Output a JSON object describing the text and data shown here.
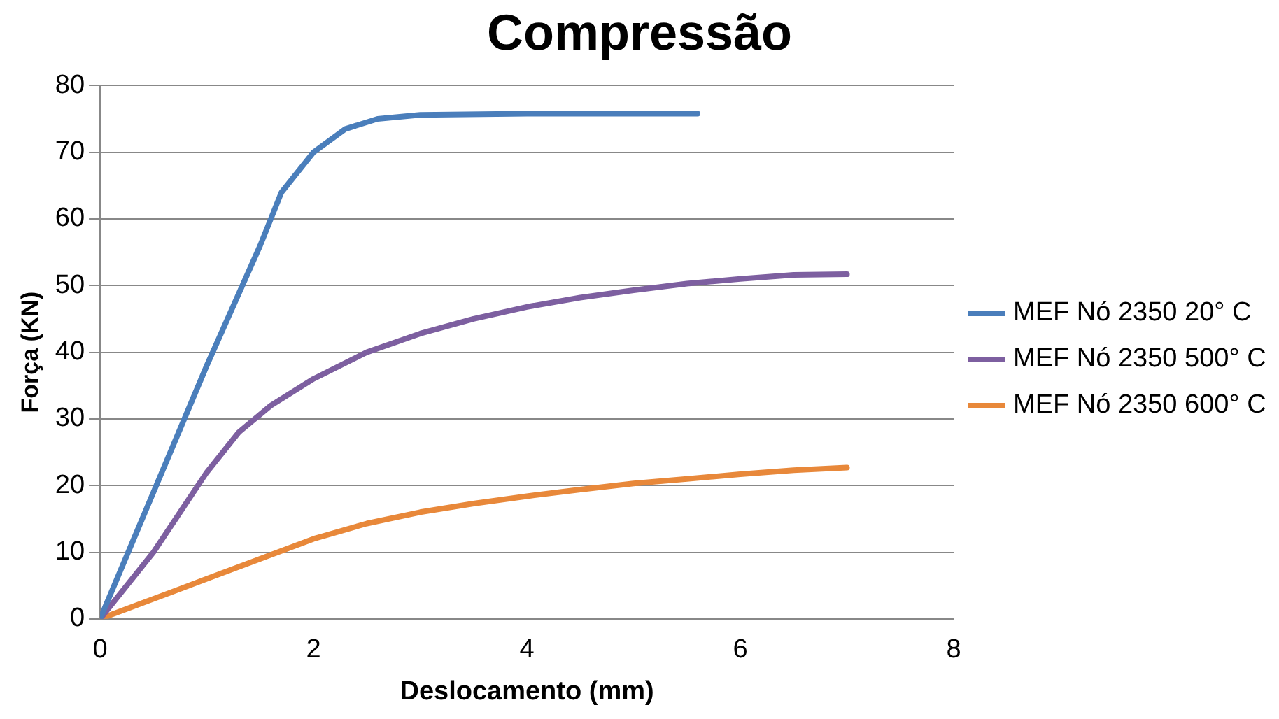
{
  "chart_data": {
    "type": "line",
    "title": "Compressão",
    "xlabel": "Deslocamento (mm)",
    "ylabel": "Força (KN)",
    "xlim": [
      0,
      8
    ],
    "xticks": [
      0,
      2,
      4,
      6,
      8
    ],
    "ylim": [
      0,
      80
    ],
    "yticks": [
      0,
      10,
      20,
      30,
      40,
      50,
      60,
      70,
      80
    ],
    "grid": "y",
    "legend": "right",
    "marker": "none",
    "series": [
      {
        "name": "MEF Nó 2350 20° C",
        "color": "#4a7ebb",
        "x": [
          0,
          0.5,
          1.0,
          1.5,
          1.7,
          2.0,
          2.3,
          2.6,
          3.0,
          4.0,
          5.6
        ],
        "values": [
          0,
          19,
          38,
          56,
          64,
          70,
          73.5,
          75,
          75.6,
          75.8,
          75.8
        ]
      },
      {
        "name": "MEF Nó 2350 500° C",
        "color": "#7d5fa0",
        "x": [
          0,
          0.5,
          1.0,
          1.3,
          1.6,
          2.0,
          2.5,
          3.0,
          3.5,
          4.0,
          4.5,
          5.0,
          5.5,
          6.0,
          6.5,
          7.0
        ],
        "values": [
          0,
          10,
          22,
          28,
          32,
          36,
          40,
          42.8,
          45,
          46.8,
          48.2,
          49.3,
          50.3,
          51,
          51.6,
          51.7
        ]
      },
      {
        "name": "MEF Nó 2350 600° C",
        "color": "#e8883a",
        "x": [
          0,
          0.5,
          1.0,
          1.5,
          2.0,
          2.5,
          3.0,
          3.5,
          4.0,
          4.5,
          5.0,
          5.5,
          6.0,
          6.5,
          7.0
        ],
        "values": [
          0,
          3,
          6,
          9,
          12,
          14.3,
          16,
          17.3,
          18.4,
          19.4,
          20.3,
          21,
          21.7,
          22.3,
          22.7
        ]
      }
    ]
  }
}
